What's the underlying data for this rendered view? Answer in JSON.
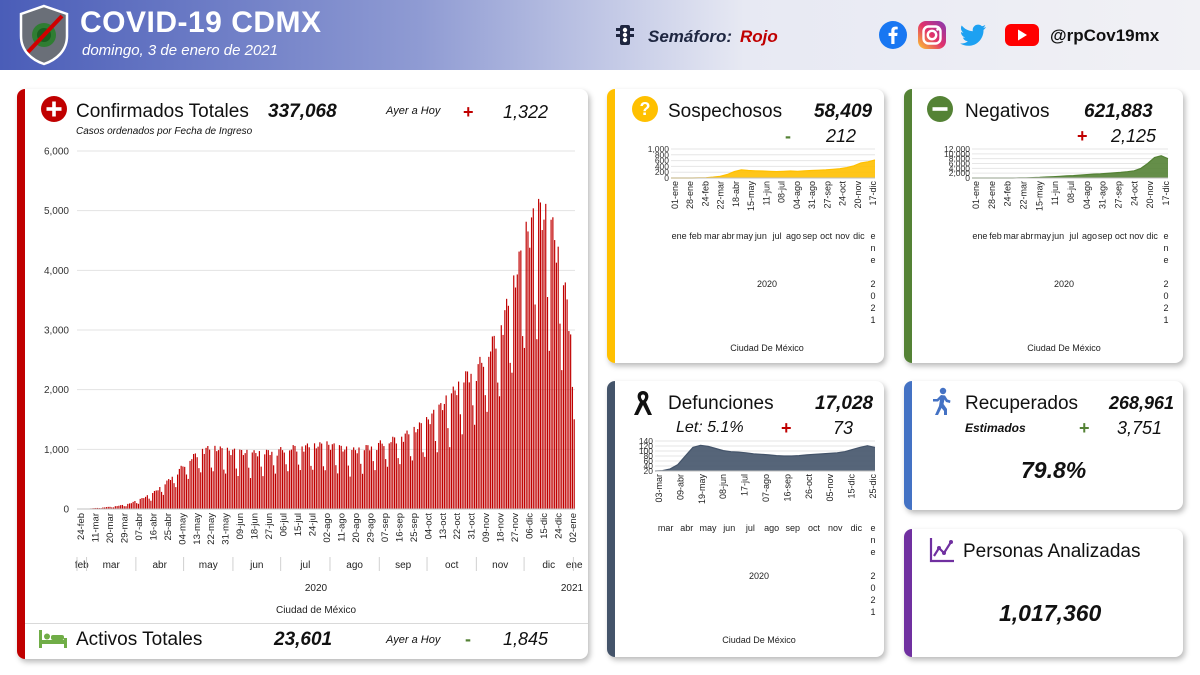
{
  "header": {
    "title": "COVID-19 CDMX",
    "date": "domingo, 3 de enero de 2021",
    "semaforo_label": "Semáforo:",
    "semaforo_value": "Rojo",
    "handle": "@rpCov19mx"
  },
  "colors": {
    "confirmed": "#c00000",
    "suspected": "#ffc000",
    "negatives": "#548235",
    "deaths": "#44546a",
    "recovered": "#4472c4",
    "analyzed": "#7030a0"
  },
  "confirmados": {
    "title": "Confirmados Totales",
    "total": "337,068",
    "subtitle": "Casos ordenados por Fecha de Ingreso",
    "ayer_label": "Ayer a Hoy",
    "sign": "+",
    "delta": "1,322"
  },
  "activos": {
    "title": "Activos Totales",
    "total": "23,601",
    "ayer_label": "Ayer a Hoy",
    "sign": "-",
    "delta": "1,845"
  },
  "sospechosos": {
    "title": "Sospechosos",
    "total": "58,409",
    "sign": "-",
    "delta": "212"
  },
  "negativos": {
    "title": "Negativos",
    "total": "621,883",
    "sign": "+",
    "delta": "2,125"
  },
  "defunciones": {
    "title": "Defunciones",
    "total": "17,028",
    "letalidad": "Let: 5.1%",
    "sign": "+",
    "delta": "73"
  },
  "recuperados": {
    "title": "Recuperados",
    "total": "268,961",
    "estimados": "Estimados",
    "sign": "+",
    "delta": "3,751",
    "percent": "79.8%"
  },
  "analizadas": {
    "title": "Personas Analizadas",
    "total": "1,017,360"
  },
  "chart_data": [
    {
      "id": "confirmados",
      "type": "bar",
      "title": "Confirmados Totales",
      "xlabel": "Ciudad de México",
      "year_labels": [
        "2020",
        "2021"
      ],
      "ylim": [
        0,
        6000
      ],
      "yticks": [
        0,
        1000,
        2000,
        3000,
        4000,
        5000,
        6000
      ],
      "ytick_labels": [
        "0",
        "1,000",
        "2,000",
        "3,000",
        "4,000",
        "5,000",
        "6,000"
      ],
      "date_ticks": [
        "24-feb",
        "11-mar",
        "20-mar",
        "29-mar",
        "07-abr",
        "16-abr",
        "25-abr",
        "04-may",
        "13-may",
        "22-may",
        "31-may",
        "09-jun",
        "18-jun",
        "27-jun",
        "06-jul",
        "15-jul",
        "24-jul",
        "02-ago",
        "11-ago",
        "20-ago",
        "29-ago",
        "07-sep",
        "16-sep",
        "25-sep",
        "04-oct",
        "13-oct",
        "22-oct",
        "31-oct",
        "09-nov",
        "18-nov",
        "27-nov",
        "06-dic",
        "15-dic",
        "24-dic",
        "02-ene"
      ],
      "month_labels": [
        "feb",
        "mar",
        "abr",
        "may",
        "jun",
        "jul",
        "ago",
        "sep",
        "oct",
        "nov",
        "dic",
        "ene"
      ],
      "weekly_values": [
        2,
        10,
        25,
        45,
        80,
        160,
        260,
        420,
        620,
        820,
        980,
        1000,
        960,
        940,
        920,
        930,
        960,
        1000,
        1020,
        1040,
        1060,
        1010,
        960,
        1000,
        1060,
        1120,
        1180,
        1300,
        1440,
        1650,
        1880,
        2150,
        2300,
        2600,
        3000,
        3700,
        4500,
        4900,
        4700,
        3800,
        2200
      ]
    },
    {
      "id": "sospechosos",
      "type": "area",
      "xlabel": "Ciudad De México",
      "ylim": [
        0,
        1000
      ],
      "ytick_labels": [
        "1,000",
        "800",
        "600",
        "400",
        "200",
        "0"
      ],
      "date_ticks": [
        "01-ene",
        "28-ene",
        "24-feb",
        "22-mar",
        "18-abr",
        "15-may",
        "11-jun",
        "08-jul",
        "04-ago",
        "31-ago",
        "27-sep",
        "24-oct",
        "20-nov",
        "17-dic"
      ],
      "month_labels": [
        "ene",
        "feb",
        "mar",
        "abr",
        "may",
        "jun",
        "jul",
        "ago",
        "sep",
        "oct",
        "nov",
        "dic",
        "ene"
      ],
      "year_labels": [
        "2020",
        "2021"
      ],
      "values": [
        0,
        0,
        0,
        0,
        2,
        10,
        30,
        60,
        120,
        220,
        280,
        260,
        250,
        240,
        230,
        220,
        230,
        240,
        230,
        250,
        260,
        270,
        280,
        300,
        320,
        360,
        420,
        520,
        560,
        620
      ]
    },
    {
      "id": "negativos",
      "type": "area",
      "xlabel": "Ciudad De México",
      "ylim": [
        0,
        12000
      ],
      "ytick_labels": [
        "12,000",
        "10,000",
        "8,000",
        "6,000",
        "4,000",
        "2,000",
        "0"
      ],
      "date_ticks": [
        "01-ene",
        "28-ene",
        "24-feb",
        "22-mar",
        "15-may",
        "11-jun",
        "08-jul",
        "04-ago",
        "31-ago",
        "27-sep",
        "24-oct",
        "20-nov",
        "17-dic"
      ],
      "month_labels": [
        "ene",
        "feb",
        "mar",
        "abr",
        "may",
        "jun",
        "jul",
        "ago",
        "sep",
        "oct",
        "nov",
        "dic",
        "ene"
      ],
      "year_labels": [
        "2020",
        "2021"
      ],
      "values": [
        0,
        0,
        0,
        0,
        0,
        0,
        20,
        40,
        80,
        150,
        260,
        400,
        520,
        700,
        900,
        1000,
        1200,
        1400,
        1600,
        1700,
        1900,
        2100,
        2300,
        2600,
        3000,
        4000,
        6000,
        8500,
        9200,
        8000
      ]
    },
    {
      "id": "defunciones",
      "type": "area",
      "xlabel": "Ciudad De México",
      "ylim": [
        0,
        140
      ],
      "ytick_labels": [
        "140",
        "120",
        "100",
        "80",
        "60",
        "40",
        "20"
      ],
      "date_ticks": [
        "03-mar",
        "09-abr",
        "19-may",
        "08-jun",
        "17-jul",
        "07-ago",
        "16-sep",
        "26-oct",
        "05-nov",
        "15-dic",
        "25-dic"
      ],
      "month_labels": [
        "mar",
        "abr",
        "may",
        "jun",
        "jul",
        "ago",
        "sep",
        "oct",
        "nov",
        "dic",
        "ene"
      ],
      "year_labels": [
        "2020",
        "2021"
      ],
      "values": [
        0,
        2,
        10,
        30,
        70,
        110,
        120,
        115,
        105,
        95,
        90,
        88,
        85,
        80,
        78,
        75,
        72,
        70,
        70,
        72,
        75,
        78,
        80,
        82,
        85,
        90,
        100,
        110,
        118,
        110
      ]
    }
  ]
}
